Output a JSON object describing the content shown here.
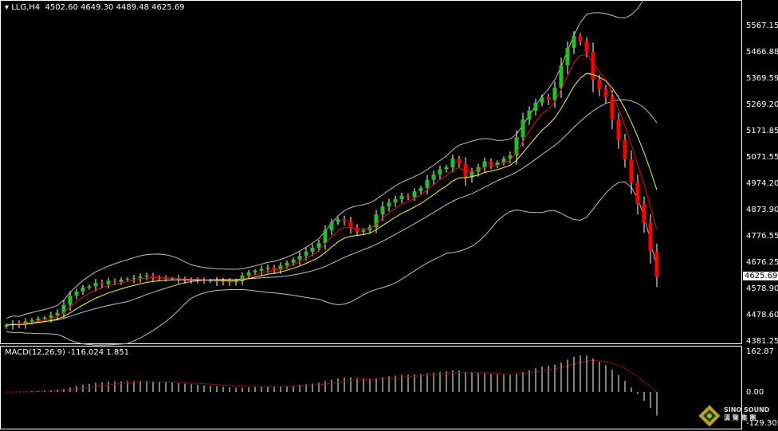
{
  "header": {
    "symbol": "LLG,H4",
    "open": "4502.60",
    "high": "4649.30",
    "low": "4489.48",
    "close": "4625.69"
  },
  "macd": {
    "label": "MACD(12,26,9)",
    "value": "-116.024",
    "signal": "1.851",
    "axis": [
      "162.87",
      "0.00",
      "-129.305"
    ]
  },
  "price_axis": [
    "5567.15",
    "5466.88",
    "5369.59",
    "5269.20",
    "5171.85",
    "5071.55",
    "4974.20",
    "4873.90",
    "4776.55",
    "4676.25",
    "4578.90",
    "4478.60",
    "4381.25"
  ],
  "current_price": "4625.69",
  "logo": {
    "name": "SINO SOUND",
    "sub": "漢 聲 集 團"
  },
  "colors": {
    "bull": "#1fc41f",
    "bear": "#ff0000",
    "ma_fast": "#ff0000",
    "ma_slow": "#ffff00",
    "bands": "#c0c0c0"
  },
  "closes": [
    4444,
    4450,
    4446,
    4458,
    4462,
    4468,
    4472,
    4480,
    4490,
    4520,
    4555,
    4570,
    4585,
    4590,
    4603,
    4598,
    4610,
    4606,
    4615,
    4618,
    4620,
    4626,
    4630,
    4622,
    4624,
    4618,
    4620,
    4616,
    4614,
    4612,
    4615,
    4610,
    4612,
    4608,
    4610,
    4605,
    4609,
    4630,
    4642,
    4648,
    4655,
    4660,
    4652,
    4668,
    4678,
    4690,
    4705,
    4720,
    4735,
    4752,
    4800,
    4830,
    4842,
    4835,
    4810,
    4795,
    4800,
    4812,
    4860,
    4890,
    4905,
    4917,
    4930,
    4925,
    4947,
    4960,
    4990,
    5010,
    5030,
    5037,
    5070,
    5050,
    5000,
    5020,
    5037,
    5060,
    5045,
    5055,
    5070,
    5082,
    5150,
    5217,
    5250,
    5280,
    5300,
    5290,
    5337,
    5420,
    5486,
    5531,
    5510,
    5470,
    5367,
    5330,
    5300,
    5217,
    5140,
    5067,
    4980,
    4900,
    4827,
    4720,
    4626
  ]
}
